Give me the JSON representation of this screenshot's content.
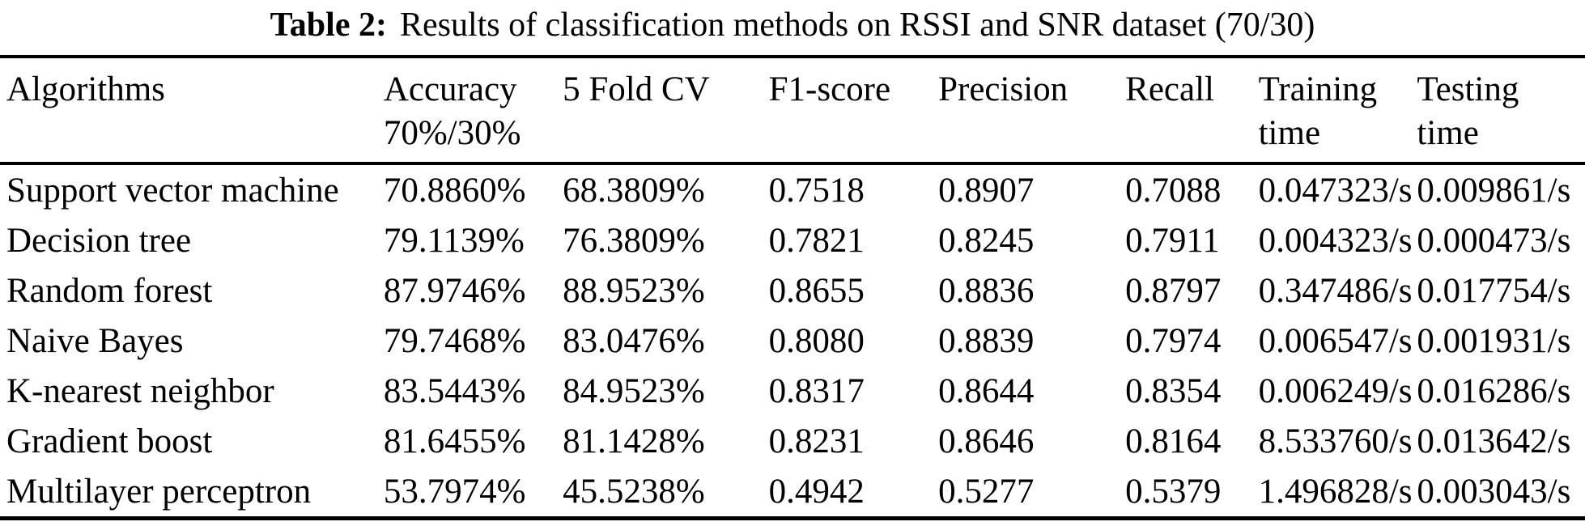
{
  "caption": {
    "label": "Table 2:",
    "text": "Results of classification methods on RSSI and SNR dataset (70/30)"
  },
  "colors": {
    "text": "#000000",
    "background": "#ffffff",
    "rule": "#000000"
  },
  "chart_data": {
    "type": "table",
    "title": "Table 2: Results of classification methods on RSSI and SNR dataset (70/30)",
    "columns": [
      {
        "id": "algorithm",
        "line1": "Algorithms",
        "line2": ""
      },
      {
        "id": "accuracy",
        "line1": "Accuracy",
        "line2": "70%/30%"
      },
      {
        "id": "cv",
        "line1": "5 Fold CV",
        "line2": ""
      },
      {
        "id": "f1",
        "line1": "F1-score",
        "line2": ""
      },
      {
        "id": "precision",
        "line1": "Precision",
        "line2": ""
      },
      {
        "id": "recall",
        "line1": "Recall",
        "line2": ""
      },
      {
        "id": "training",
        "line1": "Training",
        "line2": "time"
      },
      {
        "id": "testing",
        "line1": "Testing",
        "line2": "time"
      }
    ],
    "rows": [
      {
        "algorithm": "Support vector machine",
        "accuracy": "70.8860%",
        "cv": "68.3809%",
        "f1": "0.7518",
        "precision": "0.8907",
        "recall": "0.7088",
        "training": "0.047323/s",
        "testing": "0.009861/s"
      },
      {
        "algorithm": "Decision tree",
        "accuracy": "79.1139%",
        "cv": "76.3809%",
        "f1": "0.7821",
        "precision": "0.8245",
        "recall": "0.7911",
        "training": "0.004323/s",
        "testing": "0.000473/s"
      },
      {
        "algorithm": "Random forest",
        "accuracy": "87.9746%",
        "cv": "88.9523%",
        "f1": "0.8655",
        "precision": "0.8836",
        "recall": "0.8797",
        "training": "0.347486/s",
        "testing": "0.017754/s"
      },
      {
        "algorithm": "Naive Bayes",
        "accuracy": "79.7468%",
        "cv": "83.0476%",
        "f1": "0.8080",
        "precision": "0.8839",
        "recall": "0.7974",
        "training": "0.006547/s",
        "testing": "0.001931/s"
      },
      {
        "algorithm": "K-nearest neighbor",
        "accuracy": "83.5443%",
        "cv": "84.9523%",
        "f1": "0.8317",
        "precision": "0.8644",
        "recall": "0.8354",
        "training": "0.006249/s",
        "testing": "0.016286/s"
      },
      {
        "algorithm": "Gradient boost",
        "accuracy": "81.6455%",
        "cv": "81.1428%",
        "f1": "0.8231",
        "precision": "0.8646",
        "recall": "0.8164",
        "training": "8.533760/s",
        "testing": "0.013642/s"
      },
      {
        "algorithm": "Multilayer perceptron",
        "accuracy": "53.7974%",
        "cv": "45.5238%",
        "f1": "0.4942",
        "precision": "0.5277",
        "recall": "0.5379",
        "training": "1.496828/s",
        "testing": "0.003043/s"
      }
    ]
  }
}
